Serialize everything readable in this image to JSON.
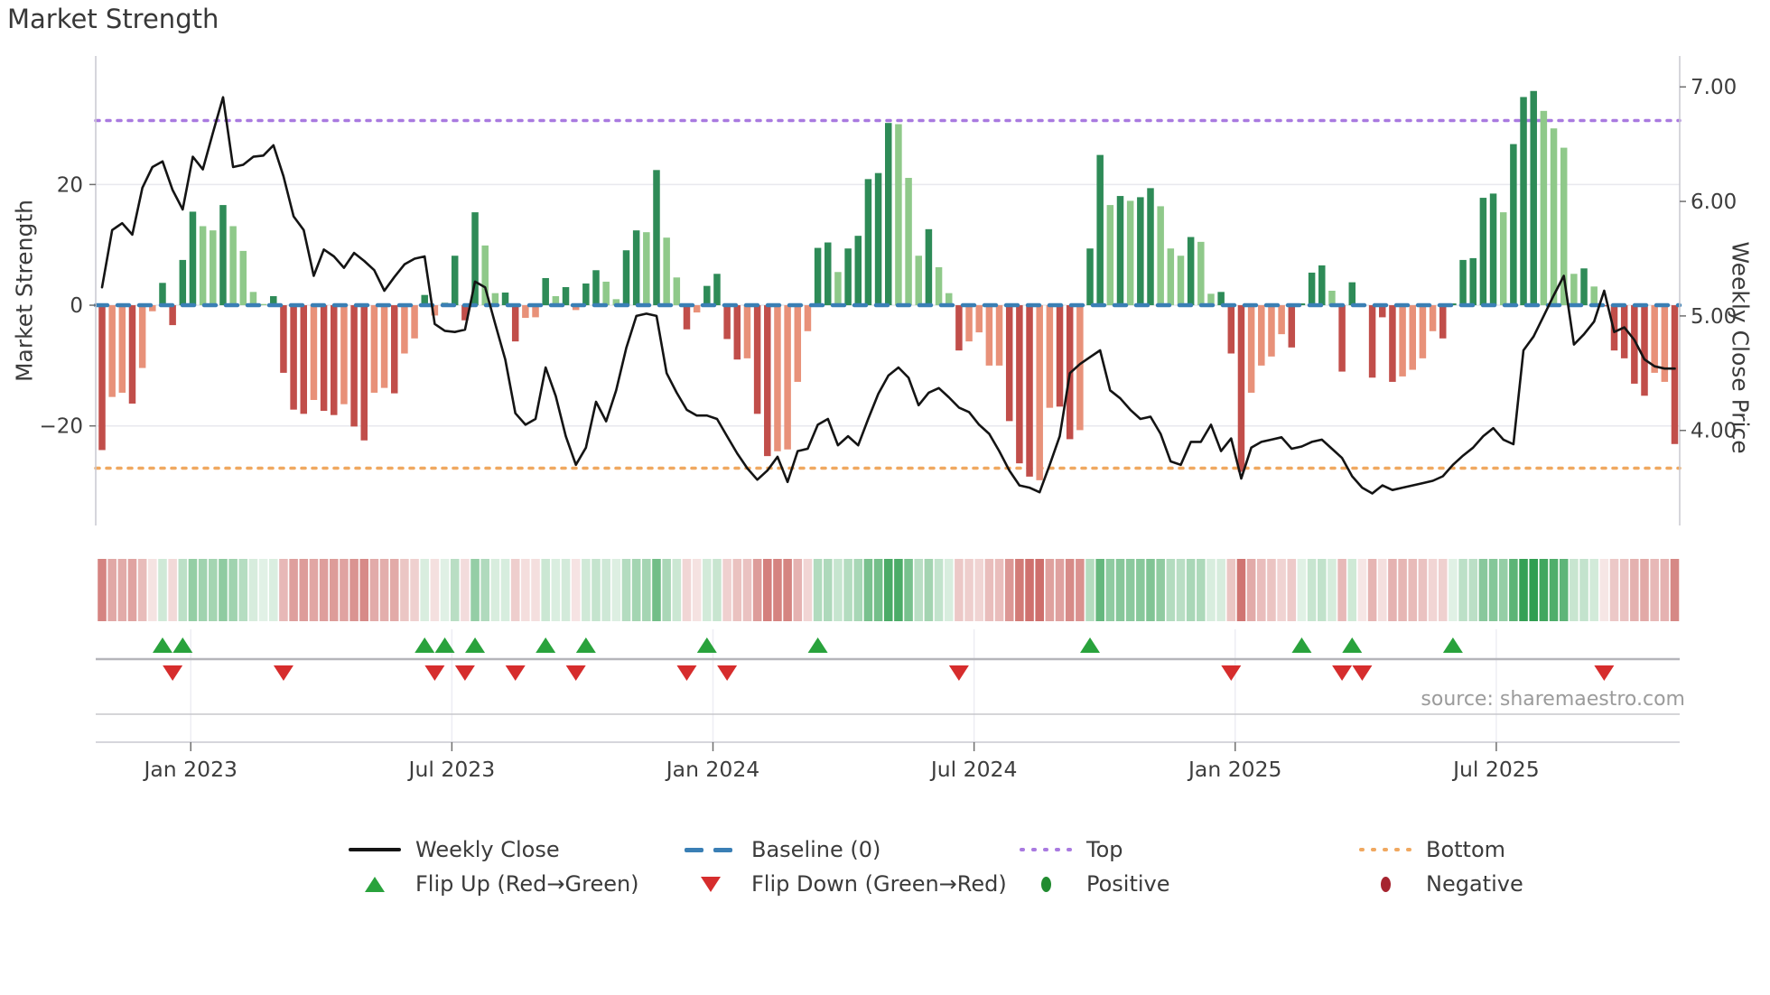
{
  "title": "Market Strength",
  "source_note": "source: sharemaestro.com",
  "colors": {
    "bar_dark_green": "#2e8b57",
    "bar_light_green": "#8fc98a",
    "bar_dark_red": "#c14e4a",
    "bar_salmon": "#e89179",
    "price_line": "#141414",
    "baseline": "#3a7fb5",
    "top_line": "#a97ae0",
    "bottom_line": "#f0a860",
    "flip_up": "#29a23c",
    "flip_down": "#d62d2d",
    "positive_dot": "#218b30",
    "negative_dot": "#a6242f",
    "heat_green": "#2e9e4f",
    "heat_red": "#c4524e",
    "grid": "#e8e8ee",
    "spine": "#c9c9d0",
    "tick_text": "#3d3d3d"
  },
  "chart_data": {
    "type": "bar+line combo with heatmap strip and flip markers",
    "title": "Market Strength",
    "weeks": 157,
    "strength": [
      -24,
      -15.2,
      -14.5,
      -16.3,
      -10.4,
      -1,
      3.7,
      -3.3,
      7.5,
      15.5,
      13.1,
      12.4,
      16.6,
      13.1,
      9,
      2.2,
      0.2,
      1.5,
      -11.2,
      -17.3,
      -18,
      -15.7,
      -17.5,
      -18.2,
      -16.4,
      -20.1,
      -22.4,
      -14.5,
      -13.7,
      -14.6,
      -8,
      -5.5,
      1.7,
      -1.7,
      0.4,
      8.2,
      -2.5,
      15.4,
      9.9,
      2,
      2.1,
      -6,
      -2.1,
      -2,
      4.5,
      1.5,
      3,
      -0.8,
      3.6,
      5.8,
      3.9,
      1,
      9.1,
      12.4,
      12.1,
      22.4,
      11.2,
      4.6,
      -4,
      -1.2,
      3.2,
      5.2,
      -5.6,
      -9,
      -8.8,
      -18,
      -25,
      -24.2,
      -23.9,
      -12.7,
      -4.3,
      9.5,
      10.4,
      5.5,
      9.4,
      11.5,
      20.9,
      21.9,
      30.2,
      30,
      21.1,
      8.2,
      12.6,
      6.3,
      2,
      -7.5,
      -6,
      -4.5,
      -10,
      -10,
      -19.2,
      -26.2,
      -28.4,
      -29,
      -17,
      -16.8,
      -22.2,
      -20.7,
      9.4,
      24.9,
      16.6,
      18.1,
      17.3,
      17.9,
      19.4,
      16.4,
      9.4,
      8.2,
      11.3,
      10.5,
      1.9,
      2.2,
      -8,
      -27.6,
      -14.5,
      -10,
      -8.5,
      -4.8,
      -7,
      0.3,
      5.4,
      6.6,
      2.4,
      -11,
      3.8,
      -0.3,
      -12,
      -2,
      -12.7,
      -11.8,
      -10.7,
      -8.8,
      -4.3,
      -5.5,
      0.3,
      7.5,
      7.8,
      17.8,
      18.5,
      15.4,
      26.7,
      34.5,
      35.5,
      32.2,
      29.3,
      26.1,
      5.2,
      6.1,
      3.1,
      -0.2,
      -7.5,
      -8.8,
      -13,
      -15,
      -11.2,
      -12.7,
      -23
    ],
    "shade_rows": [
      "RssRssDRDD",
      "ggDggggDRR",
      "RsRRsRRssR",
      "ssDsDDRDgg",
      "DRssDgDsDD",
      "ggDDgDggRs",
      "DDRRsRRsss",
      "sDDgDDDDDg",
      "ggDggRssss",
      "RRRssRRsDD",
      "gDgDDgggDg",
      "gDRRssssRD",
      "DDgRDRRRRs",
      "sssRDDDDDg",
      "DDDggggDgR",
      "RRRRssR"
    ],
    "price": [
      5.25,
      5.75,
      5.81,
      5.71,
      6.12,
      6.3,
      6.35,
      6.1,
      5.93,
      6.39,
      6.28,
      6.6,
      6.91,
      6.3,
      6.32,
      6.39,
      6.4,
      6.49,
      6.22,
      5.87,
      5.75,
      5.35,
      5.58,
      5.52,
      5.42,
      5.55,
      5.48,
      5.4,
      5.22,
      5.34,
      5.45,
      5.5,
      5.52,
      4.93,
      4.87,
      4.86,
      4.88,
      5.3,
      5.25,
      4.93,
      4.62,
      4.15,
      4.05,
      4.1,
      4.55,
      4.3,
      3.95,
      3.7,
      3.85,
      4.25,
      4.08,
      4.35,
      4.72,
      5,
      5.02,
      5,
      4.5,
      4.33,
      4.18,
      4.13,
      4.13,
      4.1,
      3.95,
      3.8,
      3.67,
      3.57,
      3.65,
      3.77,
      3.55,
      3.82,
      3.84,
      4.05,
      4.1,
      3.87,
      3.95,
      3.87,
      4.1,
      4.32,
      4.48,
      4.55,
      4.46,
      4.22,
      4.33,
      4.37,
      4.29,
      4.2,
      4.16,
      4.05,
      3.97,
      3.82,
      3.65,
      3.52,
      3.5,
      3.46,
      3.7,
      3.95,
      4.5,
      4.58,
      4.64,
      4.7,
      4.35,
      4.28,
      4.18,
      4.1,
      4.12,
      3.97,
      3.73,
      3.7,
      3.9,
      3.9,
      4.05,
      3.82,
      3.93,
      3.58,
      3.85,
      3.9,
      3.92,
      3.94,
      3.84,
      3.86,
      3.9,
      3.92,
      3.84,
      3.76,
      3.6,
      3.5,
      3.45,
      3.52,
      3.48,
      3.5,
      3.52,
      3.54,
      3.56,
      3.6,
      3.7,
      3.78,
      3.85,
      3.95,
      4.02,
      3.92,
      3.88,
      4.7,
      4.82,
      5,
      5.18,
      5.35,
      4.75,
      4.84,
      4.95,
      5.22,
      4.86,
      4.9,
      4.79,
      4.62,
      4.56,
      4.54,
      4.54
    ],
    "baseline": 0,
    "top_threshold": 30.6,
    "bottom_threshold": -27,
    "flip_up_weeks": [
      6,
      8,
      32,
      34,
      37,
      44,
      48,
      60,
      71,
      98,
      119,
      124,
      134
    ],
    "flip_down_weeks": [
      7,
      18,
      33,
      36,
      41,
      47,
      58,
      62,
      85,
      112,
      123,
      125,
      149
    ],
    "left_axis": {
      "label": "Market Strength",
      "tick_values": [
        20,
        0,
        -20
      ],
      "tick_labels": [
        "20",
        "0",
        "−20"
      ],
      "ylim": [
        -36.5,
        41.3
      ]
    },
    "right_axis": {
      "label": "Weekly Close Price",
      "tick_values": [
        7,
        6,
        5,
        4
      ],
      "tick_labels": [
        "7.00",
        "6.00",
        "5.00",
        "4.00"
      ],
      "ylim": [
        3.17,
        7.27
      ]
    },
    "x_axis": {
      "tick_weeks": [
        8.8,
        34.7,
        60.6,
        86.5,
        112.4,
        138.3
      ],
      "tick_labels": [
        "Jan 2023",
        "Jul 2023",
        "Jan 2024",
        "Jul 2024",
        "Jan 2025",
        "Jul 2025"
      ]
    },
    "grid": "horizontal at 20/0/-20, faint vertical at date ticks",
    "legend_position": "bottom, two rows"
  },
  "legend": {
    "rows": [
      [
        {
          "label": "Weekly Close",
          "swatch": "black-line"
        },
        {
          "label": "Baseline (0)",
          "swatch": "blue-dashes"
        },
        {
          "label": "Top",
          "swatch": "purple-dots"
        },
        {
          "label": "Bottom",
          "swatch": "orange-dots"
        }
      ],
      [
        {
          "label": "Flip Up (Red→Green)",
          "swatch": "green-up-triangle"
        },
        {
          "label": "Flip Down (Green→Red)",
          "swatch": "red-down-triangle"
        },
        {
          "label": "Positive",
          "swatch": "green-dot"
        },
        {
          "label": "Negative",
          "swatch": "dark-red-dot"
        }
      ]
    ]
  }
}
